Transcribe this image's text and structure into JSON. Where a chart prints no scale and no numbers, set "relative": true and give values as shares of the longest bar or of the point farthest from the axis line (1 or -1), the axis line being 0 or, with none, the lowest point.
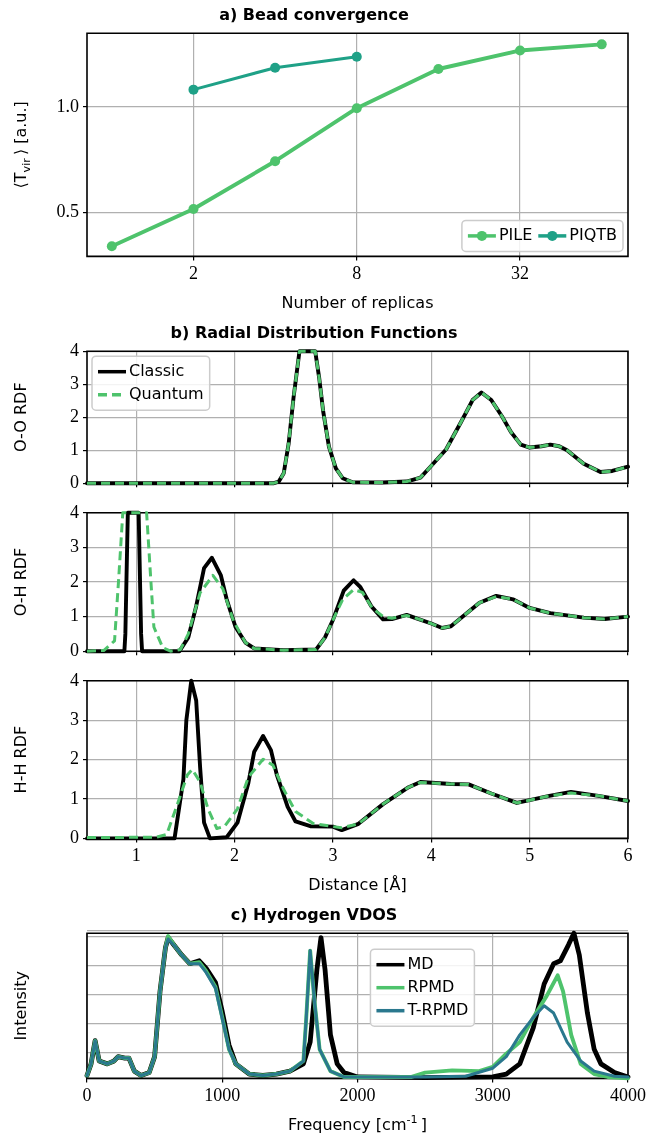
{
  "chart_data": [
    {
      "type": "line",
      "title": "a) Bead convergence",
      "xlabel": "Number of replicas",
      "ylabel": "⟨T$_{vir}$⟩ [a.u.]",
      "log": "x",
      "xlim": [
        0.81,
        80
      ],
      "xticks": [
        2,
        8,
        32
      ],
      "ylim": [
        0.29,
        1.35
      ],
      "yticks": [
        0.5,
        {
          "value": 1,
          "label": "1.0"
        }
      ],
      "grid": true,
      "legend": "bottom right",
      "marker": "circle",
      "line_style": "solid",
      "series": [
        {
          "name": "PILE",
          "color": "#4ec36c",
          "x": [
            1,
            2,
            4,
            8,
            16,
            32,
            64
          ],
          "values": [
            0.338,
            0.515,
            0.742,
            0.994,
            1.18,
            1.268,
            1.297
          ]
        },
        {
          "name": "PIQTB",
          "color": "#1fa187",
          "x": [
            2,
            4,
            8
          ],
          "values": [
            1.082,
            1.186,
            1.238
          ]
        }
      ]
    },
    {
      "type": "line",
      "title": "b) Radial Distribution Functions",
      "ylabel": "O-O RDF",
      "xlim": [
        0.5,
        6
      ],
      "xticks": [
        1,
        2,
        3,
        4,
        5,
        6
      ],
      "ylim": [
        0,
        4
      ],
      "yticks": [
        0,
        1,
        2,
        3,
        4
      ],
      "grid": true,
      "legend": "top left",
      "tick_labels": "y",
      "x": [
        0.5,
        2.4,
        2.45,
        2.5,
        2.55,
        2.6,
        2.66,
        2.82,
        2.86,
        2.9,
        2.96,
        3.03,
        3.1,
        3.2,
        3.5,
        3.75,
        3.89,
        3.98,
        4.15,
        4.3,
        4.42,
        4.51,
        4.61,
        4.72,
        4.81,
        4.91,
        5.0,
        5.12,
        5.21,
        5.3,
        5.38,
        5.55,
        5.72,
        5.84,
        6.0
      ],
      "series": [
        {
          "name": "Classic",
          "color": "#000000",
          "line_style": "solid",
          "values": [
            0,
            0,
            0.05,
            0.3,
            1.2,
            2.6,
            4,
            4,
            3.2,
            2.2,
            1.1,
            0.45,
            0.15,
            0.03,
            0.02,
            0.05,
            0.17,
            0.46,
            1.02,
            1.84,
            2.52,
            2.75,
            2.52,
            2.02,
            1.55,
            1.17,
            1.08,
            1.12,
            1.17,
            1.12,
            1.0,
            0.59,
            0.34,
            0.37,
            0.5
          ]
        },
        {
          "name": "Quantum",
          "color": "#4ec36c",
          "line_style": "dashed",
          "values": [
            0,
            0,
            0.05,
            0.3,
            1.2,
            2.6,
            4,
            4,
            3.2,
            2.2,
            1.1,
            0.45,
            0.15,
            0.03,
            0.02,
            0.05,
            0.17,
            0.46,
            1.02,
            1.84,
            2.52,
            2.75,
            2.52,
            2.02,
            1.55,
            1.17,
            1.08,
            1.12,
            1.17,
            1.12,
            1.0,
            0.59,
            0.34,
            0.37,
            0.5
          ]
        }
      ]
    },
    {
      "type": "line",
      "ylabel": "O-H RDF",
      "xlim": [
        0.5,
        6
      ],
      "xticks": [
        1,
        2,
        3,
        4,
        5,
        6
      ],
      "ylim": [
        0,
        4
      ],
      "yticks": [
        0,
        1,
        2,
        3,
        4
      ],
      "grid": true,
      "tick_labels": "y",
      "series": [
        {
          "color": "#000000",
          "line_style": "solid",
          "x": [
            0.5,
            0.88,
            0.89,
            0.915,
            1.025,
            1.05,
            1.06,
            1.44,
            1.53,
            1.61,
            1.69,
            1.77,
            1.86,
            1.92,
            2.01,
            2.11,
            2.2,
            2.5,
            2.83,
            2.92,
            3.0,
            3.11,
            3.21,
            3.28,
            3.39,
            3.51,
            3.6,
            3.75,
            3.85,
            4.0,
            4.11,
            4.2,
            4.32,
            4.49,
            4.66,
            4.83,
            5.0,
            5.21,
            5.55,
            5.76,
            6.0
          ],
          "values": [
            0,
            0,
            0.5,
            4,
            4,
            0.5,
            0,
            0,
            0.4,
            1.3,
            2.4,
            2.7,
            2.2,
            1.5,
            0.7,
            0.25,
            0.08,
            0.03,
            0.05,
            0.4,
            0.9,
            1.75,
            2.05,
            1.85,
            1.3,
            0.92,
            0.93,
            1.05,
            0.95,
            0.8,
            0.67,
            0.72,
            1.0,
            1.4,
            1.6,
            1.5,
            1.25,
            1.1,
            0.97,
            0.93,
            1.0
          ]
        },
        {
          "color": "#4ec36c",
          "line_style": "dashed",
          "x": [
            0.5,
            0.67,
            0.78,
            0.82,
            0.864,
            1.106,
            1.15,
            1.18,
            1.27,
            1.35,
            1.45,
            1.53,
            1.65,
            1.78,
            1.88,
            1.99,
            2.11,
            2.2,
            2.5,
            2.83,
            2.92,
            3.0,
            3.1,
            3.21,
            3.3,
            3.4,
            3.51,
            3.6,
            3.75,
            3.85,
            4.0,
            4.11,
            4.2,
            4.32,
            4.49,
            4.66,
            4.83,
            5.0,
            5.21,
            5.55,
            5.76,
            6.0
          ],
          "values": [
            0,
            0.02,
            0.3,
            2,
            4,
            4,
            2,
            0.7,
            0.1,
            0,
            0.05,
            0.5,
            1.69,
            2.19,
            1.81,
            0.87,
            0.25,
            0.08,
            0.03,
            0.05,
            0.4,
            0.9,
            1.5,
            1.78,
            1.7,
            1.25,
            1.0,
            0.95,
            1.03,
            0.95,
            0.8,
            0.67,
            0.72,
            1.0,
            1.4,
            1.58,
            1.5,
            1.25,
            1.1,
            0.97,
            0.93,
            1.0
          ]
        }
      ]
    },
    {
      "type": "line",
      "xlabel": "Distance [Å]",
      "ylabel": "H-H RDF",
      "xlim": [
        0.5,
        6
      ],
      "xticks": [
        1,
        2,
        3,
        4,
        5,
        6
      ],
      "ylim": [
        0,
        4
      ],
      "yticks": [
        0,
        1,
        2,
        3,
        4
      ],
      "grid": true,
      "series": [
        {
          "color": "#000000",
          "line_style": "solid",
          "x": [
            0.5,
            1.39,
            1.48,
            1.51,
            1.56,
            1.61,
            1.65,
            1.69,
            1.75,
            1.92,
            2.03,
            2.14,
            2.2,
            2.29,
            2.37,
            2.43,
            2.54,
            2.62,
            2.77,
            3.0,
            3.09,
            3.26,
            3.51,
            3.77,
            3.89,
            4.2,
            4.38,
            4.61,
            4.87,
            5.0,
            5.2,
            5.42,
            5.7,
            6.0
          ],
          "values": [
            0,
            0,
            1.5,
            3,
            4,
            3.5,
            1.8,
            0.4,
            0,
            0.03,
            0.4,
            1.4,
            2.2,
            2.6,
            2.24,
            1.61,
            0.8,
            0.43,
            0.31,
            0.3,
            0.21,
            0.37,
            0.87,
            1.3,
            1.43,
            1.38,
            1.37,
            1.14,
            0.9,
            0.97,
            1.08,
            1.18,
            1.08,
            0.95
          ]
        },
        {
          "color": "#4ec36c",
          "line_style": "dashed",
          "x": [
            0.5,
            1.2,
            1.31,
            1.42,
            1.52,
            1.57,
            1.65,
            1.73,
            1.82,
            1.9,
            2.03,
            2.14,
            2.29,
            2.39,
            2.5,
            2.62,
            2.8,
            3.0,
            3.09,
            3.26,
            3.51,
            3.77,
            3.89,
            4.2,
            4.38,
            4.61,
            4.87,
            5.0,
            5.2,
            5.42,
            5.7,
            6.0
          ],
          "values": [
            0.02,
            0.03,
            0.1,
            0.87,
            1.61,
            1.75,
            1.43,
            0.75,
            0.25,
            0.31,
            0.75,
            1.55,
            2.01,
            1.86,
            1.24,
            0.68,
            0.38,
            0.3,
            0.27,
            0.37,
            0.87,
            1.3,
            1.42,
            1.38,
            1.37,
            1.14,
            0.9,
            0.97,
            1.08,
            1.15,
            1.08,
            0.95
          ]
        }
      ]
    },
    {
      "type": "line",
      "title": "c) Hydrogen VDOS",
      "xlabel": "Frequency [cm$^{-1}$]",
      "ylabel": "Intensity",
      "relative": true,
      "xlim": [
        0,
        4000
      ],
      "xticks": [
        0,
        1000,
        2000,
        3000,
        4000
      ],
      "grid": true,
      "legend": "top",
      "line_style": "solid",
      "series": [
        {
          "name": "MD",
          "color": "#000000",
          "x": [
            0,
            30,
            60,
            90,
            150,
            200,
            230,
            280,
            310,
            350,
            400,
            460,
            500,
            540,
            580,
            600,
            650,
            700,
            760,
            830,
            880,
            950,
            1000,
            1050,
            1100,
            1200,
            1300,
            1400,
            1500,
            1600,
            1650,
            1700,
            1730,
            1760,
            1800,
            1850,
            1900,
            2000,
            2500,
            3000,
            3100,
            3200,
            3300,
            3380,
            3450,
            3500,
            3560,
            3600,
            3640,
            3700,
            3750,
            3800,
            3900,
            4000
          ],
          "values": [
            0.02,
            0.1,
            0.26,
            0.12,
            0.1,
            0.12,
            0.15,
            0.14,
            0.14,
            0.05,
            0.02,
            0.04,
            0.15,
            0.6,
            0.9,
            0.97,
            0.91,
            0.85,
            0.79,
            0.81,
            0.76,
            0.66,
            0.46,
            0.23,
            0.1,
            0.03,
            0.02,
            0.03,
            0.05,
            0.1,
            0.25,
            0.75,
            0.97,
            0.75,
            0.3,
            0.1,
            0.04,
            0.01,
            0.005,
            0.01,
            0.03,
            0.1,
            0.35,
            0.65,
            0.79,
            0.81,
            0.92,
            1,
            0.85,
            0.45,
            0.2,
            0.1,
            0.04,
            0.01
          ]
        },
        {
          "name": "RPMD",
          "color": "#4ec36c",
          "x": [
            0,
            30,
            60,
            90,
            150,
            200,
            230,
            280,
            310,
            350,
            400,
            460,
            500,
            540,
            580,
            600,
            650,
            700,
            760,
            830,
            880,
            950,
            1000,
            1050,
            1100,
            1200,
            1300,
            1400,
            1500,
            1600,
            1620,
            1650,
            1680,
            1720,
            1800,
            1900,
            2400,
            2500,
            2700,
            2900,
            3000,
            3100,
            3200,
            3300,
            3400,
            3480,
            3520,
            3580,
            3650,
            3750,
            3850,
            4000
          ],
          "values": [
            0.02,
            0.1,
            0.26,
            0.12,
            0.1,
            0.12,
            0.15,
            0.14,
            0.14,
            0.05,
            0.02,
            0.04,
            0.15,
            0.6,
            0.9,
            0.98,
            0.91,
            0.85,
            0.79,
            0.8,
            0.74,
            0.63,
            0.42,
            0.2,
            0.1,
            0.03,
            0.02,
            0.03,
            0.05,
            0.12,
            0.4,
            0.88,
            0.55,
            0.2,
            0.05,
            0.01,
            0.01,
            0.04,
            0.055,
            0.05,
            0.08,
            0.17,
            0.25,
            0.42,
            0.57,
            0.71,
            0.6,
            0.3,
            0.1,
            0.03,
            0.01,
            0
          ]
        },
        {
          "name": "T-RPMD",
          "color": "#2a788e",
          "x": [
            0,
            30,
            60,
            90,
            150,
            200,
            230,
            280,
            310,
            350,
            400,
            460,
            500,
            540,
            580,
            600,
            650,
            700,
            760,
            830,
            880,
            950,
            1000,
            1050,
            1100,
            1200,
            1300,
            1400,
            1500,
            1600,
            1620,
            1650,
            1680,
            1720,
            1800,
            1900,
            2500,
            2800,
            3000,
            3100,
            3200,
            3300,
            3380,
            3450,
            3550,
            3650,
            3750,
            3900,
            4000
          ],
          "values": [
            0.02,
            0.1,
            0.26,
            0.12,
            0.1,
            0.12,
            0.15,
            0.14,
            0.14,
            0.05,
            0.02,
            0.04,
            0.15,
            0.6,
            0.9,
            0.96,
            0.91,
            0.85,
            0.79,
            0.79,
            0.73,
            0.62,
            0.41,
            0.2,
            0.1,
            0.03,
            0.02,
            0.03,
            0.05,
            0.12,
            0.4,
            0.88,
            0.55,
            0.2,
            0.05,
            0.01,
            0.01,
            0.015,
            0.07,
            0.15,
            0.3,
            0.42,
            0.5,
            0.45,
            0.25,
            0.12,
            0.05,
            0.015,
            0.01
          ]
        }
      ]
    }
  ]
}
